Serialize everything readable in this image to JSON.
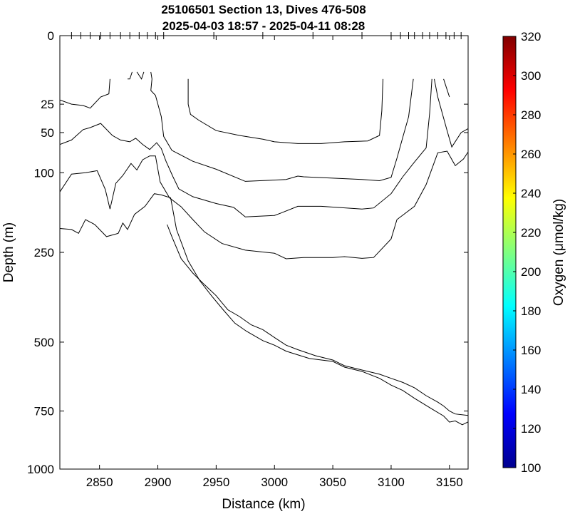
{
  "chart_data": {
    "type": "contour",
    "title_lines": [
      "25106501 Section 13, Dives 476-508",
      "2025-04-03 18:57 - 2025-04-11 08:28"
    ],
    "xlabel": "Distance (km)",
    "ylabel": "Depth (m)",
    "xlim": [
      2816,
      3166
    ],
    "x_ticks": [
      2850,
      2900,
      2950,
      3000,
      3050,
      3100,
      3150
    ],
    "y_scale": "sqrt",
    "ylim": [
      0,
      1000
    ],
    "y_ticks": [
      0,
      25,
      50,
      100,
      250,
      500,
      750,
      1000
    ],
    "top_dive_ticks": [
      2826,
      2834,
      2842,
      2851,
      2859,
      2868,
      2876,
      2884,
      2891,
      2898,
      2905,
      2948,
      2990,
      3033,
      3075,
      3100,
      3108,
      3115,
      3120,
      3127,
      3133,
      3140,
      3147,
      3154,
      3160
    ],
    "colorbar": {
      "label": "Oxygen (μmol/kg)",
      "min": 100,
      "max": 320,
      "ticks": [
        100,
        120,
        140,
        160,
        180,
        200,
        220,
        240,
        260,
        280,
        300,
        320
      ],
      "colormap": "jet"
    },
    "contours": [
      {
        "segments": [
          [
            [
              2816,
              22
            ],
            [
              2826,
              25
            ],
            [
              2836,
              26
            ],
            [
              2842,
              28
            ],
            [
              2851,
              20
            ],
            [
              2858,
              18
            ],
            [
              2859,
              10
            ]
          ],
          [
            [
              2874,
              10
            ],
            [
              2876,
              10
            ],
            [
              2878,
              7
            ]
          ],
          [
            [
              2882,
              7
            ],
            [
              2886,
              10
            ],
            [
              2888,
              7
            ]
          ],
          [
            [
              2894,
              7
            ],
            [
              2895,
              10
            ],
            [
              2894,
              16
            ],
            [
              2898,
              19
            ],
            [
              2903,
              35
            ],
            [
              2905,
              54
            ],
            [
              2912,
              70
            ],
            [
              2930,
              84
            ],
            [
              2950,
              95
            ],
            [
              2975,
              113
            ],
            [
              3000,
              111
            ],
            [
              3010,
              110
            ],
            [
              3020,
              105
            ],
            [
              3025,
              106
            ],
            [
              3075,
              110
            ],
            [
              3090,
              112
            ],
            [
              3100,
              107
            ],
            [
              3105,
              80
            ],
            [
              3110,
              55
            ],
            [
              3115,
              35
            ],
            [
              3119,
              10
            ]
          ],
          [
            [
              3137,
              10
            ],
            [
              3140,
              20
            ],
            [
              3148,
              48
            ],
            [
              3152,
              66
            ],
            [
              3160,
              50
            ],
            [
              3166,
              46
            ]
          ]
        ]
      },
      {
        "segments": [
          [
            [
              2816,
              63
            ],
            [
              2826,
              58
            ],
            [
              2836,
              47
            ],
            [
              2842,
              45
            ],
            [
              2851,
              41
            ],
            [
              2861,
              53
            ],
            [
              2868,
              58
            ],
            [
              2876,
              60
            ],
            [
              2881,
              56
            ],
            [
              2887,
              63
            ],
            [
              2893,
              69
            ],
            [
              2899,
              61
            ],
            [
              2903,
              68
            ],
            [
              2907,
              84
            ],
            [
              2913,
              106
            ],
            [
              2918,
              125
            ],
            [
              2930,
              138
            ],
            [
              2950,
              150
            ],
            [
              2965,
              157
            ],
            [
              2975,
              175
            ],
            [
              3000,
              172
            ],
            [
              3005,
              168
            ],
            [
              3020,
              155
            ],
            [
              3040,
              155
            ],
            [
              3075,
              160
            ],
            [
              3085,
              158
            ],
            [
              3100,
              133
            ],
            [
              3110,
              106
            ],
            [
              3120,
              85
            ],
            [
              3130,
              67
            ],
            [
              3133,
              32
            ],
            [
              3135,
              10
            ]
          ]
        ]
      },
      {
        "segments": [
          [
            [
              2816,
              130
            ],
            [
              2826,
              102
            ],
            [
              2838,
              100
            ],
            [
              2848,
              97
            ],
            [
              2855,
              126
            ],
            [
              2859,
              160
            ],
            [
              2864,
              116
            ],
            [
              2870,
              104
            ],
            [
              2877,
              87
            ],
            [
              2882,
              96
            ],
            [
              2887,
              82
            ],
            [
              2893,
              77
            ],
            [
              2898,
              77
            ],
            [
              2902,
              114
            ],
            [
              2910,
              140
            ],
            [
              2920,
              156
            ],
            [
              2930,
              180
            ],
            [
              2940,
              205
            ],
            [
              2955,
              230
            ],
            [
              2975,
              245
            ],
            [
              3000,
              252
            ],
            [
              3010,
              265
            ],
            [
              3025,
              262
            ],
            [
              3050,
              262
            ],
            [
              3060,
              260
            ],
            [
              3075,
              264
            ],
            [
              3085,
              262
            ],
            [
              3100,
              220
            ],
            [
              3105,
              180
            ],
            [
              3120,
              155
            ],
            [
              3130,
              118
            ],
            [
              3140,
              73
            ],
            [
              3148,
              71
            ],
            [
              3155,
              90
            ],
            [
              3162,
              81
            ],
            [
              3166,
              72
            ]
          ],
          [
            [
              2926,
              10
            ],
            [
              2926,
              25
            ],
            [
              2928,
              33
            ],
            [
              2935,
              38
            ],
            [
              2950,
              48
            ],
            [
              2970,
              53
            ],
            [
              2990,
              57
            ],
            [
              3000,
              60
            ],
            [
              3020,
              62
            ],
            [
              3040,
              62
            ],
            [
              3060,
              60
            ],
            [
              3080,
              59
            ],
            [
              3090,
              53
            ],
            [
              3092,
              30
            ],
            [
              3093,
              10
            ]
          ],
          [
            [
              3145,
              10
            ],
            [
              3150,
              20
            ]
          ]
        ]
      },
      {
        "segments": [
          [
            [
              2816,
              198
            ],
            [
              2826,
              200
            ],
            [
              2832,
              208
            ],
            [
              2838,
              180
            ],
            [
              2846,
              190
            ],
            [
              2856,
              215
            ],
            [
              2866,
              208
            ],
            [
              2870,
              187
            ],
            [
              2874,
              200
            ],
            [
              2880,
              170
            ],
            [
              2889,
              155
            ],
            [
              2897,
              133
            ],
            [
              2903,
              135
            ],
            [
              2911,
              140
            ],
            [
              2916,
              200
            ],
            [
              2926,
              270
            ],
            [
              2936,
              320
            ],
            [
              2946,
              360
            ],
            [
              2956,
              400
            ],
            [
              2966,
              440
            ],
            [
              2976,
              465
            ],
            [
              2990,
              495
            ],
            [
              3000,
              510
            ],
            [
              3010,
              530
            ],
            [
              3030,
              555
            ],
            [
              3050,
              565
            ],
            [
              3060,
              585
            ],
            [
              3075,
              600
            ],
            [
              3090,
              625
            ],
            [
              3100,
              650
            ],
            [
              3110,
              670
            ],
            [
              3120,
              700
            ],
            [
              3135,
              742
            ],
            [
              3145,
              770
            ],
            [
              3150,
              795
            ],
            [
              3155,
              790
            ],
            [
              3161,
              806
            ],
            [
              3166,
              794
            ]
          ],
          [
            [
              2908,
              190
            ],
            [
              2912,
              215
            ],
            [
              2920,
              265
            ],
            [
              2930,
              300
            ],
            [
              2940,
              330
            ],
            [
              2950,
              360
            ],
            [
              2960,
              400
            ],
            [
              2970,
              420
            ],
            [
              2980,
              445
            ],
            [
              2990,
              460
            ],
            [
              3000,
              485
            ],
            [
              3010,
              510
            ],
            [
              3020,
              525
            ],
            [
              3035,
              545
            ],
            [
              3050,
              560
            ],
            [
              3060,
              580
            ],
            [
              3075,
              595
            ],
            [
              3090,
              610
            ],
            [
              3100,
              625
            ],
            [
              3110,
              640
            ],
            [
              3120,
              660
            ],
            [
              3130,
              690
            ],
            [
              3140,
              715
            ],
            [
              3145,
              730
            ],
            [
              3150,
              750
            ],
            [
              3155,
              762
            ],
            [
              3166,
              768
            ]
          ]
        ]
      }
    ]
  }
}
